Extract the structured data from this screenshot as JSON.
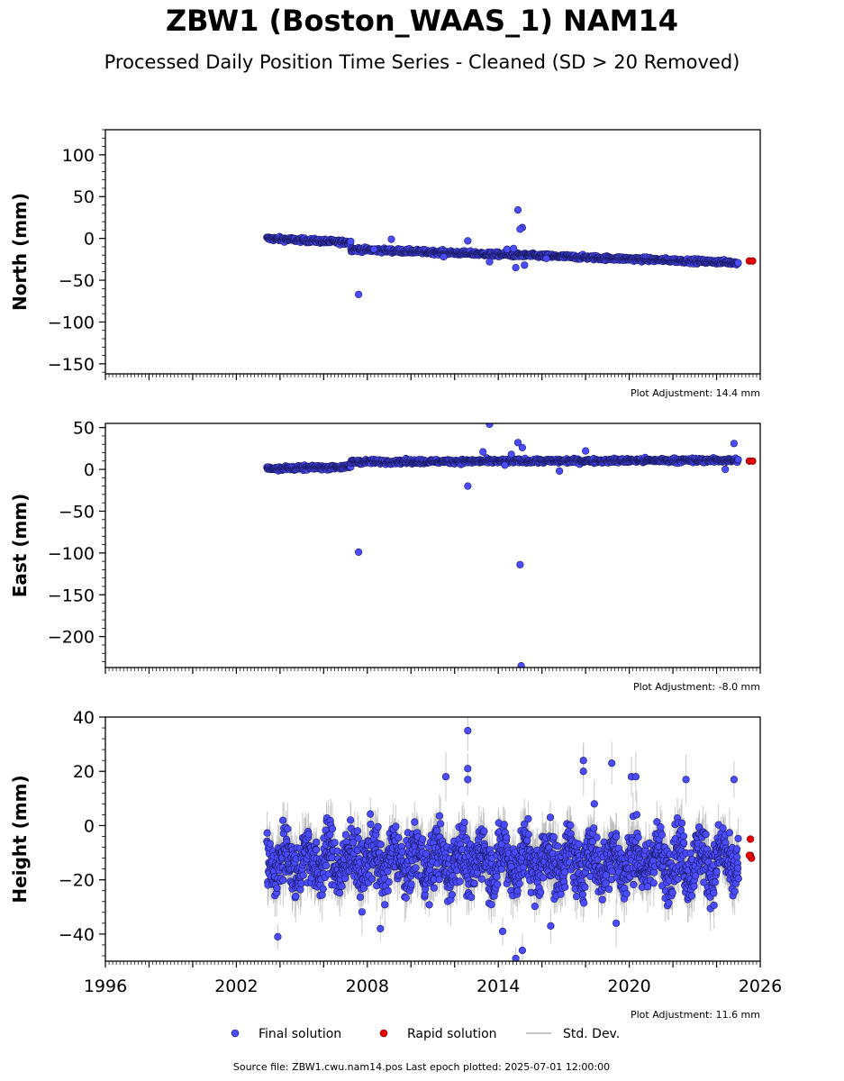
{
  "title": "ZBW1 (Boston_WAAS_1) NAM14",
  "subtitle": "Processed Daily Position Time Series - Cleaned (SD > 20 Removed)",
  "colors": {
    "final": "#4b4bff",
    "final_edge": "#1a1a60",
    "rapid": "#ee0000",
    "rapid_edge": "#600000",
    "stddev": "#b4b4b4"
  },
  "legend": {
    "final": "Final solution",
    "rapid": "Rapid solution",
    "stddev": "Std. Dev."
  },
  "footer": "Source file: ZBW1.cwu.nam14.pos  Last epoch plotted: 2025-07-01 12:00:00",
  "chart_data": [
    {
      "type": "scatter",
      "ylabel": "North (mm)",
      "adjustment": "Plot Adjustment: 14.4 mm",
      "xlim": [
        1996,
        2026
      ],
      "ylim": [
        -162,
        130
      ],
      "yticks": [
        100,
        50,
        0,
        -50,
        -100,
        -150
      ],
      "ytick_labels": [
        "100",
        "50",
        "0",
        "−50",
        "−100",
        "−150"
      ],
      "show_xtick_labels": false,
      "segments": [
        {
          "start": 2003.4,
          "end": 2007.25,
          "y0": 0,
          "y1": -5,
          "noise": 1.8
        },
        {
          "start": 2007.25,
          "end": 2025.0,
          "y0": -13,
          "y1": -29,
          "noise": 1.8
        }
      ],
      "stddev": 3,
      "outliers": [
        [
          2007.6,
          -67
        ],
        [
          2009.1,
          -1
        ],
        [
          2012.6,
          -3
        ],
        [
          2014.9,
          34
        ],
        [
          2015.1,
          13
        ],
        [
          2015.0,
          11
        ],
        [
          2014.8,
          -35
        ],
        [
          2015.2,
          -32
        ],
        [
          2014.4,
          -13
        ],
        [
          2014.7,
          -12
        ],
        [
          2008.3,
          -13
        ],
        [
          2013.6,
          -28
        ],
        [
          2016.2,
          -24
        ],
        [
          2011.5,
          -22
        ]
      ],
      "rapid": [
        [
          2025.5,
          -27
        ],
        [
          2025.65,
          -27
        ]
      ]
    },
    {
      "type": "scatter",
      "ylabel": "East (mm)",
      "adjustment": "Plot Adjustment: -8.0 mm",
      "xlim": [
        1996,
        2026
      ],
      "ylim": [
        -237,
        55
      ],
      "yticks": [
        50,
        0,
        -50,
        -100,
        -150,
        -200
      ],
      "ytick_labels": [
        "50",
        "0",
        "−50",
        "−100",
        "−150",
        "−200"
      ],
      "show_xtick_labels": false,
      "segments": [
        {
          "start": 2003.4,
          "end": 2007.25,
          "y0": 1,
          "y1": 3,
          "noise": 1.8
        },
        {
          "start": 2007.25,
          "end": 2025.0,
          "y0": 9,
          "y1": 11,
          "noise": 1.8
        }
      ],
      "stddev": 3,
      "outliers": [
        [
          2007.6,
          -99
        ],
        [
          2012.6,
          -20
        ],
        [
          2013.3,
          21
        ],
        [
          2013.6,
          54
        ],
        [
          2014.9,
          32
        ],
        [
          2015.1,
          26
        ],
        [
          2015.0,
          -114
        ],
        [
          2015.05,
          -235
        ],
        [
          2014.6,
          18
        ],
        [
          2016.8,
          -2
        ],
        [
          2018.0,
          22
        ],
        [
          2024.4,
          0
        ],
        [
          2024.8,
          31
        ],
        [
          2014.3,
          5
        ]
      ],
      "rapid": [
        [
          2025.5,
          10
        ],
        [
          2025.65,
          10
        ]
      ]
    },
    {
      "type": "scatter",
      "ylabel": "Height (mm)",
      "adjustment": "Plot Adjustment: 11.6 mm",
      "xlim": [
        1996,
        2026
      ],
      "ylim": [
        -50,
        40
      ],
      "yticks": [
        40,
        20,
        0,
        -20,
        -40
      ],
      "ytick_labels": [
        "40",
        "20",
        "0",
        "−20",
        "−40"
      ],
      "xticks": [
        1996,
        2002,
        2008,
        2014,
        2020,
        2026
      ],
      "xtick_labels": [
        "1996",
        "2002",
        "2008",
        "2014",
        "2020",
        "2026"
      ],
      "show_xtick_labels": true,
      "segments": [
        {
          "start": 2003.4,
          "end": 2025.0,
          "y0": -13,
          "y1": -13,
          "noise": 7.5
        }
      ],
      "stddev": 7,
      "outliers": [
        [
          2003.9,
          -41
        ],
        [
          2012.6,
          35
        ],
        [
          2012.6,
          21
        ],
        [
          2012.6,
          17
        ],
        [
          2011.6,
          18
        ],
        [
          2017.9,
          24
        ],
        [
          2017.9,
          20
        ],
        [
          2018.4,
          8
        ],
        [
          2019.2,
          23
        ],
        [
          2020.1,
          18
        ],
        [
          2020.3,
          18
        ],
        [
          2022.6,
          17
        ],
        [
          2024.8,
          17
        ],
        [
          2014.8,
          -49
        ],
        [
          2015.1,
          -46
        ],
        [
          2014.2,
          -39
        ],
        [
          2008.6,
          -38
        ],
        [
          2019.4,
          -36
        ],
        [
          2016.4,
          -37
        ]
      ],
      "rapid": [
        [
          2025.55,
          -5
        ],
        [
          2025.55,
          -11
        ],
        [
          2025.6,
          -12
        ],
        [
          2025.5,
          -11
        ]
      ]
    }
  ]
}
